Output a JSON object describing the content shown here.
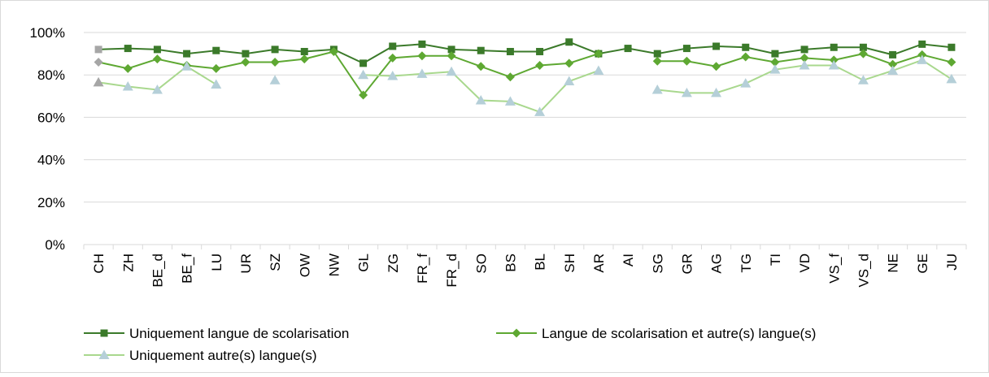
{
  "chart_data": {
    "type": "line",
    "categories": [
      "CH",
      "ZH",
      "BE_d",
      "BE_f",
      "LU",
      "UR",
      "SZ",
      "OW",
      "NW",
      "GL",
      "ZG",
      "FR_f",
      "FR_d",
      "SO",
      "BS",
      "BL",
      "SH",
      "AR",
      "AI",
      "SG",
      "GR",
      "AG",
      "TG",
      "TI",
      "VD",
      "VS_f",
      "VS_d",
      "NE",
      "GE",
      "JU"
    ],
    "series": [
      {
        "name": "Uniquement langue de scolarisation",
        "color": "#3b7a2a",
        "marker": "square",
        "marker_color": "#3b7a2a",
        "values": [
          92,
          92.5,
          92,
          90,
          91.5,
          90,
          92,
          91,
          92,
          85.5,
          93.5,
          94.5,
          92,
          91.5,
          91,
          91,
          95.5,
          90,
          92.5,
          90,
          92.5,
          93.5,
          93,
          90,
          92,
          93,
          93,
          89.5,
          94.5,
          93
        ]
      },
      {
        "name": "Langue de scolarisation et autre(s) langue(s)",
        "color": "#5ea832",
        "marker": "diamond",
        "marker_color": "#5ea832",
        "values": [
          86,
          83,
          87.5,
          84.5,
          83,
          86,
          86,
          87.5,
          91,
          70.5,
          88,
          89,
          89,
          84,
          79,
          84.5,
          85.5,
          90,
          null,
          86.5,
          86.5,
          84,
          88.5,
          86,
          88,
          87,
          90,
          85,
          89.5,
          86
        ]
      },
      {
        "name": "Uniquement autre(s) langue(s)",
        "color": "#a9d88e",
        "marker": "triangle",
        "marker_color": "#b5cfd8",
        "values": [
          76.5,
          74.5,
          73,
          84,
          75.5,
          null,
          77.5,
          null,
          null,
          80,
          79.5,
          80.5,
          81.5,
          68,
          67.5,
          62.5,
          77,
          82,
          null,
          73,
          71.5,
          71.5,
          76,
          82.5,
          84.5,
          84.5,
          77.5,
          82,
          87,
          78
        ]
      }
    ],
    "highlight": {
      "categories": [
        "CH"
      ],
      "color": "#a6a6a6"
    },
    "ylim": [
      0,
      100
    ],
    "yticks": [
      {
        "value": 0,
        "label": "0%"
      },
      {
        "value": 20,
        "label": "20%"
      },
      {
        "value": 40,
        "label": "40%"
      },
      {
        "value": 60,
        "label": "60%"
      },
      {
        "value": 80,
        "label": "80%"
      },
      {
        "value": 100,
        "label": "100%"
      }
    ],
    "grid": true,
    "legend": "bottom"
  }
}
